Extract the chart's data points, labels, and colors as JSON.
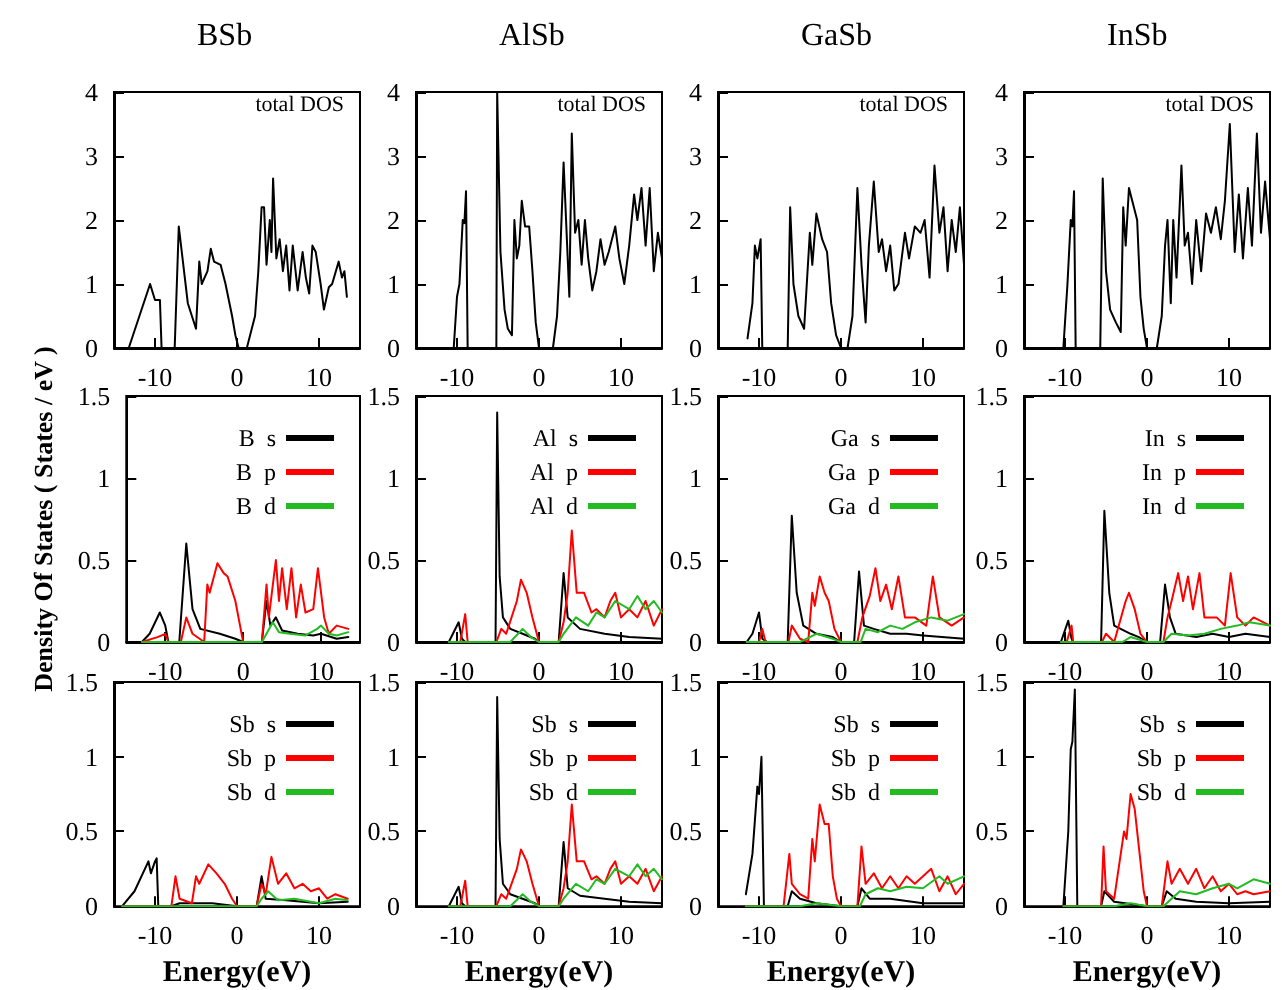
{
  "chart_data": [
    {
      "type": "line",
      "title": "BSb",
      "annotations": [
        "total DOS"
      ],
      "xlim": [
        -15,
        15
      ],
      "xticks": [
        -10,
        0,
        10
      ],
      "ylim": [
        0,
        4
      ],
      "yticks": [
        0,
        1,
        2,
        3,
        4
      ],
      "series": [
        {
          "color": "#000000",
          "x": [
            -13.2,
            -10.6,
            -10,
            -9.4,
            -9.2,
            -7.6,
            -7.1,
            -6,
            -5,
            -4.6,
            -4.3,
            -3.6,
            -3.2,
            -2.8,
            -2,
            -1.4,
            -0.6,
            -0.2,
            0.2,
            1.2,
            2.2,
            2.6,
            3,
            3.3,
            3.6,
            4,
            4.2,
            4.4,
            4.8,
            5.2,
            5.6,
            6,
            6.4,
            6.8,
            7.4,
            8,
            8.4,
            8.8,
            9.2,
            9.6,
            10.2,
            10.6,
            11.2,
            11.6,
            12.4,
            12.8,
            13.1,
            13.4
          ],
          "values": [
            0,
            1.0,
            0.75,
            0.75,
            0,
            0,
            1.9,
            0.7,
            0.3,
            1.35,
            1.0,
            1.2,
            1.55,
            1.35,
            1.3,
            1.0,
            0.5,
            0.2,
            0,
            0,
            0.5,
            1.2,
            2.2,
            2.2,
            1.3,
            2.0,
            1.5,
            2.65,
            1.4,
            1.7,
            1.2,
            1.6,
            0.9,
            1.6,
            0.9,
            1.5,
            1.1,
            0.85,
            1.6,
            1.5,
            1.0,
            0.6,
            0.95,
            1.0,
            1.35,
            1.1,
            1.2,
            0.8
          ]
        }
      ]
    },
    {
      "type": "line",
      "title": "AlSb",
      "annotations": [
        "total DOS"
      ],
      "xlim": [
        -15,
        15
      ],
      "xticks": [
        -10,
        0,
        10
      ],
      "ylim": [
        0,
        4
      ],
      "yticks": [
        0,
        1,
        2,
        3,
        4
      ],
      "series": [
        {
          "color": "#000000",
          "x": [
            -10.4,
            -10,
            -9.7,
            -9.3,
            -9.1,
            -8.9,
            -8.7,
            -5.2,
            -5.1,
            -4.7,
            -4.2,
            -3.8,
            -3.3,
            -3,
            -2.7,
            -2.4,
            -2.1,
            -1.7,
            -1.2,
            -0.8,
            -0.4,
            0,
            1.7,
            2.2,
            2.6,
            3,
            3.4,
            3.7,
            4,
            4.4,
            4.8,
            5.2,
            5.6,
            6,
            6.5,
            7,
            7.5,
            8,
            8.5,
            9.3,
            9.8,
            10.4,
            11,
            11.6,
            12,
            12.5,
            13,
            13.5,
            14,
            14.5,
            15
          ],
          "values": [
            0,
            0.8,
            1.0,
            2.0,
            1.95,
            2.45,
            0,
            0,
            4,
            1.5,
            0.6,
            0.3,
            0.2,
            2.0,
            1.4,
            1.6,
            2.3,
            1.9,
            1.9,
            1.2,
            0.4,
            0,
            0,
            0.5,
            1.5,
            2.9,
            1.7,
            0.8,
            3.35,
            1.8,
            2.0,
            1.3,
            2.0,
            1.4,
            0.9,
            1.2,
            1.7,
            1.3,
            1.5,
            1.9,
            1.4,
            1.0,
            1.6,
            2.4,
            2.0,
            2.5,
            1.6,
            2.5,
            1.2,
            1.8,
            1.4
          ]
        }
      ]
    },
    {
      "type": "line",
      "title": "GaSb",
      "annotations": [
        "total DOS"
      ],
      "xlim": [
        -15,
        15
      ],
      "xticks": [
        -10,
        0,
        10
      ],
      "ylim": [
        0,
        4
      ],
      "yticks": [
        0,
        1,
        2,
        3,
        4
      ],
      "series": [
        {
          "color": "#000000",
          "x": [
            -11.4,
            -10.8,
            -10.5,
            -10.2,
            -9.8,
            -9.6,
            -6.5,
            -6.2,
            -5.8,
            -5.2,
            -4.5,
            -3.8,
            -3.5,
            -3,
            -2.3,
            -1.7,
            -1.2,
            -0.6,
            0,
            0.8,
            1.4,
            2,
            2.5,
            3,
            3.4,
            4,
            4.6,
            5,
            5.5,
            6,
            6.5,
            7,
            7.8,
            8.3,
            9,
            9.7,
            10.2,
            10.8,
            11.4,
            12,
            12.5,
            13,
            13.5,
            14,
            14.5,
            15
          ],
          "values": [
            0.15,
            0.7,
            1.6,
            1.4,
            1.7,
            0,
            0,
            2.2,
            1.0,
            0.5,
            0.3,
            1.8,
            1.3,
            2.1,
            1.7,
            1.5,
            0.7,
            0.2,
            0,
            0,
            0.5,
            2.5,
            1.3,
            0.4,
            1.6,
            2.6,
            1.5,
            1.7,
            1.2,
            1.6,
            0.9,
            1.0,
            1.8,
            1.4,
            1.9,
            1.8,
            2.0,
            1.1,
            2.85,
            1.8,
            2.2,
            1.2,
            2.0,
            1.5,
            2.2,
            1.3
          ]
        }
      ]
    },
    {
      "type": "line",
      "title": "InSb",
      "annotations": [
        "total DOS"
      ],
      "xlim": [
        -15,
        15
      ],
      "xticks": [
        -10,
        0,
        10
      ],
      "ylim": [
        0,
        4
      ],
      "yticks": [
        0,
        1,
        2,
        3,
        4
      ],
      "series": [
        {
          "color": "#000000",
          "x": [
            -10.2,
            -10,
            -9.7,
            -9.3,
            -9.1,
            -8.9,
            -8.7,
            -5.7,
            -5.4,
            -5,
            -4.5,
            -3.8,
            -3.2,
            -2.9,
            -2.6,
            -2.2,
            -1.6,
            -1.2,
            -0.8,
            -0.4,
            0,
            1.2,
            1.8,
            2.2,
            2.5,
            2.9,
            3.2,
            3.6,
            4.2,
            4.6,
            5,
            5.5,
            6,
            6.6,
            7.2,
            7.8,
            8.4,
            9,
            9.5,
            10.1,
            10.7,
            11.2,
            11.7,
            12.3,
            12.8,
            13.4,
            13.9,
            14.4,
            15
          ],
          "values": [
            0,
            0.4,
            1.0,
            2.0,
            1.9,
            2.45,
            0,
            0,
            2.65,
            1.2,
            0.6,
            0.4,
            0.25,
            2.2,
            1.6,
            2.5,
            2.2,
            2.0,
            0.8,
            0.3,
            0,
            0,
            0.5,
            1.6,
            2.0,
            0.7,
            2.0,
            1.1,
            2.85,
            1.6,
            1.8,
            1.0,
            2.0,
            1.2,
            2.1,
            1.8,
            2.2,
            1.7,
            2.3,
            3.5,
            1.5,
            2.4,
            1.4,
            2.5,
            1.6,
            3.35,
            1.8,
            2.6,
            1.7
          ]
        }
      ]
    },
    {
      "type": "line",
      "ylabel": "Density Of States ( States / eV )",
      "legend": "top right",
      "xlim": [
        -15,
        15
      ],
      "xticks": [
        -10,
        0,
        10
      ],
      "ylim": [
        0,
        1.5
      ],
      "yticks": [
        0,
        0.5,
        1,
        1.5
      ],
      "series": [
        {
          "name": "B  s",
          "color": "#000000",
          "x": [
            -15,
            -13,
            -12,
            -10.7,
            -10,
            -9.6,
            -8.2,
            -7.3,
            -6.5,
            -5.5,
            -3,
            -1,
            0,
            2.4,
            3,
            3.5,
            4.2,
            5,
            7,
            9,
            10,
            12,
            13.5
          ],
          "values": [
            0,
            0,
            0.05,
            0.18,
            0.1,
            0,
            0,
            0.6,
            0.2,
            0.08,
            0.05,
            0.02,
            0,
            0,
            0.25,
            0.1,
            0.15,
            0.07,
            0.05,
            0.04,
            0.05,
            0.02,
            0.03
          ]
        },
        {
          "name": "B  p",
          "color": "#ff0000",
          "x": [
            -13,
            -11,
            -10,
            -9.6,
            -8,
            -7.3,
            -6.5,
            -5,
            -4.6,
            -4.3,
            -3.3,
            -2.5,
            -2,
            -1,
            -0.4,
            0,
            2.4,
            3,
            3.3,
            4.2,
            4.6,
            5,
            5.6,
            6.2,
            6.8,
            7.4,
            8,
            9,
            9.6,
            10.4,
            11,
            12,
            13.5
          ],
          "values": [
            0,
            0.03,
            0.05,
            0,
            0,
            0.15,
            0.05,
            0,
            0.35,
            0.3,
            0.48,
            0.42,
            0.4,
            0.25,
            0.1,
            0,
            0,
            0.35,
            0.15,
            0.5,
            0.25,
            0.45,
            0.2,
            0.45,
            0.15,
            0.35,
            0.18,
            0.2,
            0.45,
            0.15,
            0.05,
            0.1,
            0.08
          ]
        },
        {
          "name": "B  d",
          "color": "#22bb22",
          "x": [
            -13,
            2.4,
            3,
            3.8,
            4.6,
            6,
            8,
            9.5,
            10,
            11,
            12,
            13.5
          ],
          "values": [
            0,
            0,
            0.05,
            0.12,
            0.06,
            0.05,
            0.04,
            0.08,
            0.1,
            0.05,
            0.04,
            0.06
          ]
        }
      ]
    },
    {
      "type": "line",
      "legend": "top right",
      "xlim": [
        -15,
        15
      ],
      "xticks": [
        -10,
        0,
        10
      ],
      "ylim": [
        0,
        1.5
      ],
      "yticks": [
        0,
        0.5,
        1,
        1.5
      ],
      "series": [
        {
          "name": "Al  s",
          "color": "#000000",
          "x": [
            -11,
            -9.8,
            -9.4,
            -9,
            -5.3,
            -5.1,
            -4.8,
            -4.4,
            -3.5,
            -2,
            -0.5,
            0,
            2.4,
            3,
            3.5,
            5,
            8,
            11,
            15
          ],
          "values": [
            0,
            0.12,
            0.02,
            0,
            0,
            1.4,
            0.4,
            0.15,
            0.08,
            0.05,
            0.02,
            0,
            0,
            0.42,
            0.15,
            0.08,
            0.05,
            0.03,
            0.02
          ]
        },
        {
          "name": "Al  p",
          "color": "#ff0000",
          "x": [
            -11,
            -9.6,
            -9,
            -8.7,
            -5.2,
            -4.6,
            -4,
            -2.7,
            -2.2,
            -1.5,
            -0.8,
            0,
            2.4,
            3,
            3.5,
            4,
            4.6,
            5.5,
            6.4,
            7,
            8,
            8.7,
            9.3,
            10,
            11,
            12,
            13,
            14,
            15
          ],
          "values": [
            0,
            0,
            0.17,
            0,
            0,
            0.08,
            0.05,
            0.25,
            0.38,
            0.3,
            0.15,
            0,
            0,
            0.12,
            0.3,
            0.68,
            0.3,
            0.3,
            0.18,
            0.2,
            0.15,
            0.25,
            0.3,
            0.15,
            0.2,
            0.15,
            0.25,
            0.1,
            0.2
          ]
        },
        {
          "name": "Al  d",
          "color": "#22bb22",
          "x": [
            -11,
            -3.5,
            -2,
            -1,
            0,
            2.4,
            3,
            4.5,
            6,
            7,
            8,
            9.3,
            11,
            12,
            13,
            14,
            15
          ],
          "values": [
            0,
            0,
            0.08,
            0.03,
            0,
            0,
            0.05,
            0.15,
            0.1,
            0.18,
            0.15,
            0.25,
            0.2,
            0.28,
            0.2,
            0.25,
            0.18
          ]
        }
      ]
    },
    {
      "type": "line",
      "legend": "top right",
      "xlim": [
        -15,
        15
      ],
      "xticks": [
        -10,
        0,
        10
      ],
      "ylim": [
        0,
        1.5
      ],
      "yticks": [
        0,
        0.5,
        1,
        1.5
      ],
      "series": [
        {
          "name": "Ga  s",
          "color": "#000000",
          "x": [
            -11.5,
            -10.8,
            -10,
            -9.6,
            -9,
            -6.5,
            -6,
            -5.4,
            -4.6,
            -3,
            -1,
            0,
            1.6,
            2.2,
            2.8,
            4,
            6,
            8,
            10,
            15
          ],
          "values": [
            0,
            0.05,
            0.18,
            0.02,
            0,
            0,
            0.77,
            0.3,
            0.1,
            0.05,
            0.03,
            0,
            0,
            0.43,
            0.1,
            0.08,
            0.05,
            0.05,
            0.04,
            0.02
          ]
        },
        {
          "name": "Ga  p",
          "color": "#ff0000",
          "x": [
            -11.5,
            -10,
            -9.6,
            -9.2,
            -6.4,
            -6,
            -5,
            -4,
            -3.5,
            -3.2,
            -2.6,
            -2,
            -1.5,
            -0.8,
            0,
            2,
            2.6,
            3.5,
            4.2,
            4.8,
            5.5,
            6.2,
            7,
            7.8,
            9,
            10.4,
            11.2,
            12,
            13.5,
            15
          ],
          "values": [
            0,
            0,
            0.08,
            0,
            0,
            0.1,
            0.02,
            0,
            0.3,
            0.22,
            0.4,
            0.3,
            0.25,
            0.08,
            0,
            0,
            0.15,
            0.28,
            0.45,
            0.25,
            0.35,
            0.2,
            0.4,
            0.15,
            0.15,
            0.1,
            0.4,
            0.15,
            0.1,
            0.15
          ]
        },
        {
          "name": "Ga  d",
          "color": "#22bb22",
          "x": [
            -11.5,
            -5,
            -3,
            -1,
            0,
            2.4,
            3,
            4.5,
            6,
            7.5,
            9,
            11,
            13,
            15
          ],
          "values": [
            0,
            0,
            0.05,
            0.02,
            0,
            0,
            0.08,
            0.06,
            0.1,
            0.08,
            0.12,
            0.15,
            0.13,
            0.17
          ]
        }
      ]
    },
    {
      "type": "line",
      "legend": "top right",
      "xlim": [
        -15,
        15
      ],
      "xticks": [
        -10,
        0,
        10
      ],
      "ylim": [
        0,
        1.5
      ],
      "yticks": [
        0,
        0.5,
        1,
        1.5
      ],
      "series": [
        {
          "name": "In  s",
          "color": "#000000",
          "x": [
            -10.5,
            -9.6,
            -9.2,
            -9,
            -5.6,
            -5.2,
            -4.6,
            -4,
            -2,
            -1,
            0,
            1.6,
            2.2,
            2.8,
            3.5,
            6,
            8,
            10,
            12,
            15
          ],
          "values": [
            0,
            0.13,
            0.02,
            0,
            0,
            0.8,
            0.3,
            0.1,
            0.05,
            0.03,
            0,
            0,
            0.35,
            0.15,
            0.05,
            0.03,
            0.05,
            0.03,
            0.05,
            0.03
          ]
        },
        {
          "name": "In  p",
          "color": "#ff0000",
          "x": [
            -10.5,
            -9.8,
            -9.2,
            -9,
            -5.5,
            -5,
            -4,
            -2.6,
            -2.2,
            -1.5,
            -0.8,
            0,
            2,
            2.5,
            3,
            3.8,
            4.4,
            5,
            5.6,
            6.4,
            7,
            8.5,
            9.5,
            10.2,
            11,
            12,
            13,
            15
          ],
          "values": [
            0,
            0,
            0.1,
            0,
            0,
            0.05,
            0,
            0.25,
            0.3,
            0.2,
            0.05,
            0,
            0,
            0.15,
            0.25,
            0.42,
            0.25,
            0.4,
            0.2,
            0.42,
            0.15,
            0.15,
            0.1,
            0.42,
            0.15,
            0.1,
            0.15,
            0.1
          ]
        },
        {
          "name": "In  d",
          "color": "#22bb22",
          "x": [
            -10.5,
            -3,
            -2,
            0,
            2,
            3,
            5,
            7,
            9,
            11,
            12.5,
            15
          ],
          "values": [
            0,
            0,
            0.03,
            0,
            0,
            0.05,
            0.04,
            0.05,
            0.08,
            0.1,
            0.12,
            0.1
          ]
        }
      ]
    },
    {
      "type": "line",
      "xlabel": "Energy(eV)",
      "legend": "top right",
      "xlim": [
        -15,
        15
      ],
      "xticks": [
        -10,
        0,
        10
      ],
      "ylim": [
        0,
        1.5
      ],
      "yticks": [
        0,
        0.5,
        1,
        1.5
      ],
      "series": [
        {
          "name": "Sb  s",
          "color": "#000000",
          "x": [
            -14,
            -12.5,
            -10.8,
            -10.5,
            -10,
            -9.8,
            -9.6,
            -8,
            -7,
            -3,
            0,
            2.4,
            3,
            3.5,
            6,
            10,
            13.5
          ],
          "values": [
            0,
            0.1,
            0.3,
            0.22,
            0.3,
            0.32,
            0,
            0,
            0.02,
            0.02,
            0,
            0,
            0.2,
            0.05,
            0.04,
            0.02,
            0.03
          ]
        },
        {
          "name": "Sb  p",
          "color": "#ff0000",
          "x": [
            -14,
            -8,
            -7.5,
            -7,
            -5.5,
            -5,
            -4.6,
            -3.5,
            -2.5,
            -1.5,
            -0.6,
            0,
            2.4,
            3,
            3.5,
            4.2,
            5,
            6,
            7,
            8,
            9,
            10,
            11,
            12,
            13.5
          ],
          "values": [
            0,
            0,
            0.2,
            0.05,
            0.02,
            0.2,
            0.15,
            0.28,
            0.22,
            0.15,
            0.05,
            0,
            0,
            0.15,
            0.08,
            0.33,
            0.15,
            0.22,
            0.12,
            0.15,
            0.1,
            0.12,
            0.05,
            0.08,
            0.05
          ]
        },
        {
          "name": "Sb  d",
          "color": "#22bb22",
          "x": [
            -14,
            2.4,
            3,
            3.8,
            5,
            7,
            9,
            10,
            12,
            13.5
          ],
          "values": [
            0,
            0,
            0.05,
            0.1,
            0.04,
            0.05,
            0.03,
            0.02,
            0.05,
            0.04
          ]
        }
      ]
    },
    {
      "type": "line",
      "xlabel": "Energy(eV)",
      "legend": "top right",
      "xlim": [
        -15,
        15
      ],
      "xticks": [
        -10,
        0,
        10
      ],
      "ylim": [
        0,
        1.5
      ],
      "yticks": [
        0,
        0.5,
        1,
        1.5
      ],
      "series": [
        {
          "name": "Sb  s",
          "color": "#000000",
          "x": [
            -11,
            -9.8,
            -9.4,
            -9,
            -5.3,
            -5.1,
            -4.8,
            -4.4,
            -3.5,
            -2,
            -0.5,
            0,
            2.4,
            3,
            3.5,
            5,
            8,
            11,
            15
          ],
          "values": [
            0,
            0.13,
            0.02,
            0,
            0,
            1.4,
            0.45,
            0.15,
            0.08,
            0.05,
            0.02,
            0,
            0,
            0.43,
            0.12,
            0.07,
            0.05,
            0.03,
            0.02
          ]
        },
        {
          "name": "Sb  p",
          "color": "#ff0000",
          "x": [
            -11,
            -9.6,
            -9,
            -8.7,
            -5.2,
            -4.6,
            -4,
            -2.7,
            -2.2,
            -1.5,
            -0.8,
            0,
            2.4,
            3,
            3.5,
            4,
            4.6,
            5.5,
            6.4,
            7,
            8,
            8.7,
            9.3,
            10,
            11,
            12,
            13,
            14,
            15
          ],
          "values": [
            0,
            0,
            0.17,
            0,
            0,
            0.08,
            0.05,
            0.25,
            0.38,
            0.3,
            0.15,
            0,
            0,
            0.12,
            0.3,
            0.68,
            0.3,
            0.3,
            0.18,
            0.2,
            0.15,
            0.25,
            0.3,
            0.15,
            0.2,
            0.15,
            0.25,
            0.1,
            0.2
          ]
        },
        {
          "name": "Sb  d",
          "color": "#22bb22",
          "x": [
            -11,
            -3.5,
            -2,
            -1,
            0,
            2.4,
            3,
            4.5,
            6,
            7,
            8,
            9.3,
            11,
            12,
            13,
            14,
            15
          ],
          "values": [
            0,
            0,
            0.08,
            0.03,
            0,
            0,
            0.05,
            0.15,
            0.1,
            0.18,
            0.15,
            0.25,
            0.2,
            0.28,
            0.2,
            0.25,
            0.18
          ]
        }
      ]
    },
    {
      "type": "line",
      "xlabel": "Energy(eV)",
      "legend": "top right",
      "xlim": [
        -15,
        15
      ],
      "xticks": [
        -10,
        0,
        10
      ],
      "ylim": [
        0,
        1.5
      ],
      "yticks": [
        0,
        0.5,
        1,
        1.5
      ],
      "series": [
        {
          "name": "Sb  s",
          "color": "#000000",
          "x": [
            -11.6,
            -10.8,
            -10.2,
            -10,
            -9.7,
            -9.4,
            -6.5,
            -6,
            -5,
            -3,
            0,
            2,
            2.5,
            3.5,
            6,
            10,
            15
          ],
          "values": [
            0.08,
            0.35,
            0.8,
            0.75,
            1.0,
            0,
            0,
            0.1,
            0.05,
            0.02,
            0,
            0,
            0.12,
            0.05,
            0.05,
            0.02,
            0.02
          ]
        },
        {
          "name": "Sb  p",
          "color": "#ff0000",
          "x": [
            -11.6,
            -7,
            -6.3,
            -6,
            -5,
            -4,
            -3.5,
            -3.2,
            -2.6,
            -2,
            -1.5,
            -1,
            -0.5,
            0,
            2,
            2.5,
            3,
            4,
            5,
            6,
            7,
            8,
            9,
            11,
            12,
            13,
            14,
            15
          ],
          "values": [
            0,
            0,
            0.35,
            0.15,
            0.08,
            0.05,
            0.45,
            0.3,
            0.68,
            0.55,
            0.55,
            0.2,
            0.05,
            0,
            0,
            0.4,
            0.15,
            0.22,
            0.12,
            0.2,
            0.12,
            0.2,
            0.15,
            0.25,
            0.1,
            0.2,
            0.08,
            0.15
          ]
        },
        {
          "name": "Sb  d",
          "color": "#22bb22",
          "x": [
            -11.6,
            -5,
            -3,
            0,
            2.3,
            3,
            4.5,
            6,
            8,
            10,
            12,
            13,
            15
          ],
          "values": [
            0,
            0,
            0.02,
            0,
            0,
            0.08,
            0.12,
            0.1,
            0.13,
            0.12,
            0.2,
            0.15,
            0.2
          ]
        }
      ]
    },
    {
      "type": "line",
      "xlabel": "Energy(eV)",
      "legend": "top right",
      "xlim": [
        -15,
        15
      ],
      "xticks": [
        -10,
        0,
        10
      ],
      "ylim": [
        0,
        1.5
      ],
      "yticks": [
        0,
        0.5,
        1,
        1.5
      ],
      "series": [
        {
          "name": "Sb  s",
          "color": "#000000",
          "x": [
            -10.2,
            -9.6,
            -9.3,
            -9.1,
            -8.8,
            -8.5,
            -5.6,
            -5.2,
            -4,
            0,
            1.8,
            2.4,
            3.5,
            6,
            10,
            15
          ],
          "values": [
            0,
            0.5,
            1.05,
            1.1,
            1.45,
            0,
            0,
            0.1,
            0.03,
            0,
            0,
            0.1,
            0.05,
            0.03,
            0.02,
            0.03
          ]
        },
        {
          "name": "Sb  p",
          "color": "#ff0000",
          "x": [
            -10.2,
            -5.6,
            -5.3,
            -5,
            -4,
            -2.8,
            -2.5,
            -2,
            -1.5,
            -1,
            -0.4,
            0,
            1.8,
            2.5,
            3,
            4,
            5,
            6,
            7,
            8,
            9,
            10,
            11,
            12,
            13,
            15
          ],
          "values": [
            0,
            0,
            0.4,
            0.1,
            0.05,
            0.5,
            0.45,
            0.75,
            0.65,
            0.4,
            0.1,
            0,
            0,
            0.3,
            0.15,
            0.25,
            0.15,
            0.25,
            0.12,
            0.2,
            0.1,
            0.15,
            0.08,
            0.1,
            0.08,
            0.1
          ]
        },
        {
          "name": "Sb  d",
          "color": "#22bb22",
          "x": [
            -10.2,
            -4,
            -2,
            0,
            2,
            3,
            4,
            6,
            8,
            10,
            11,
            13,
            15
          ],
          "values": [
            0,
            0,
            0.02,
            0,
            0,
            0.05,
            0.1,
            0.08,
            0.12,
            0.15,
            0.12,
            0.18,
            0.15
          ]
        }
      ]
    }
  ]
}
